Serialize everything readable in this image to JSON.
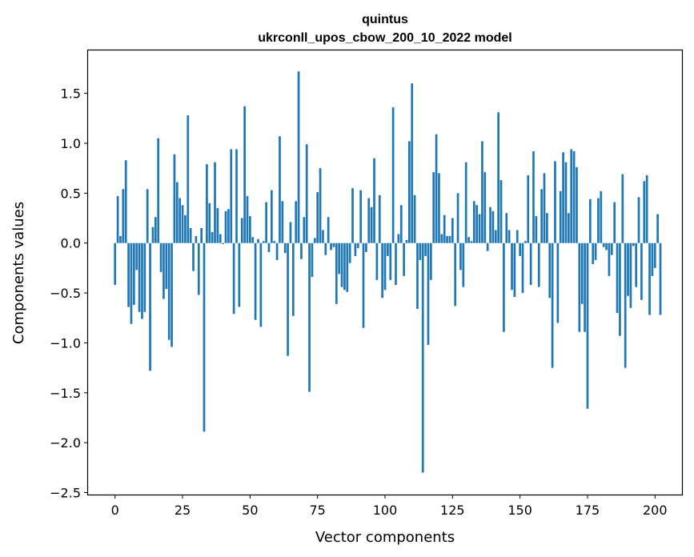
{
  "chart_data": {
    "type": "bar",
    "title": "quintus",
    "subtitle": "ukrconll_upos_cbow_200_10_2022 model",
    "xlabel": "Vector components",
    "ylabel": "Components values",
    "xlim": [
      -10,
      210
    ],
    "ylim": [
      -2.52,
      1.93
    ],
    "xticks": [
      0,
      25,
      50,
      75,
      100,
      125,
      150,
      175,
      200
    ],
    "yticks": [
      -2.5,
      -2.0,
      -1.5,
      -1.0,
      -0.5,
      0.0,
      0.5,
      1.0,
      1.5
    ],
    "ytick_labels": [
      "−2.5",
      "−2.0",
      "−1.5",
      "−1.0",
      "−0.5",
      "0.0",
      "0.5",
      "1.0",
      "1.5"
    ],
    "xtick_labels": [
      "0",
      "25",
      "50",
      "75",
      "100",
      "125",
      "150",
      "175",
      "200"
    ],
    "grid": false,
    "color": "#1f77b4",
    "values": [
      -0.42,
      0.47,
      0.07,
      0.54,
      0.83,
      -0.64,
      -0.81,
      -0.62,
      -0.27,
      -0.69,
      -0.76,
      -0.69,
      0.54,
      -1.28,
      0.16,
      0.26,
      1.05,
      -0.29,
      -0.56,
      -0.46,
      -0.97,
      -1.04,
      0.89,
      0.61,
      0.45,
      0.38,
      0.28,
      1.28,
      0.15,
      -0.28,
      0.07,
      -0.52,
      0.15,
      -1.89,
      0.79,
      0.4,
      0.11,
      0.81,
      0.35,
      0.09,
      -0.01,
      0.32,
      0.34,
      0.94,
      -0.71,
      0.94,
      -0.64,
      0.25,
      1.37,
      0.47,
      0.27,
      0.06,
      -0.77,
      0.04,
      -0.84,
      0.02,
      0.41,
      -0.09,
      0.53,
      0.02,
      -0.17,
      1.07,
      0.42,
      -0.1,
      -1.13,
      0.21,
      -0.73,
      0.42,
      1.72,
      -0.16,
      0.26,
      0.99,
      -1.49,
      -0.34,
      0.05,
      0.51,
      0.75,
      0.13,
      -0.12,
      0.26,
      -0.07,
      -0.04,
      -0.61,
      -0.31,
      -0.44,
      -0.47,
      -0.49,
      -0.2,
      0.55,
      -0.13,
      -0.05,
      0.53,
      -0.85,
      -0.09,
      0.45,
      0.36,
      0.85,
      -0.37,
      0.48,
      -0.55,
      -0.47,
      -0.13,
      -0.37,
      1.36,
      -0.42,
      0.09,
      0.38,
      -0.33,
      0.03,
      1.02,
      1.6,
      0.48,
      -0.66,
      -0.17,
      -2.3,
      -0.13,
      -1.02,
      -0.37,
      0.71,
      1.09,
      0.7,
      0.09,
      0.28,
      0.07,
      0.07,
      0.25,
      -0.63,
      0.5,
      -0.27,
      -0.44,
      0.81,
      0.06,
      0.02,
      0.42,
      0.38,
      0.29,
      1.02,
      0.71,
      -0.08,
      0.36,
      0.32,
      0.13,
      1.31,
      0.63,
      -0.89,
      0.3,
      0.13,
      -0.47,
      -0.54,
      0.13,
      -0.13,
      -0.5,
      0.02,
      0.68,
      -0.42,
      0.92,
      0.27,
      -0.44,
      0.54,
      0.7,
      0.3,
      -0.55,
      -1.25,
      0.82,
      -0.8,
      0.52,
      0.91,
      0.81,
      0.3,
      0.94,
      0.92,
      0.76,
      -0.89,
      -0.61,
      -0.89,
      -1.66,
      0.44,
      -0.21,
      -0.17,
      0.45,
      0.52,
      -0.04,
      -0.07,
      -0.33,
      -0.12,
      0.41,
      -0.7,
      -0.93,
      0.69,
      -1.25,
      -0.53,
      -0.65,
      -0.03,
      -0.44,
      0.46,
      -0.57,
      0.62,
      0.68,
      -0.72,
      -0.33,
      -0.25,
      0.29,
      -0.72
    ]
  }
}
